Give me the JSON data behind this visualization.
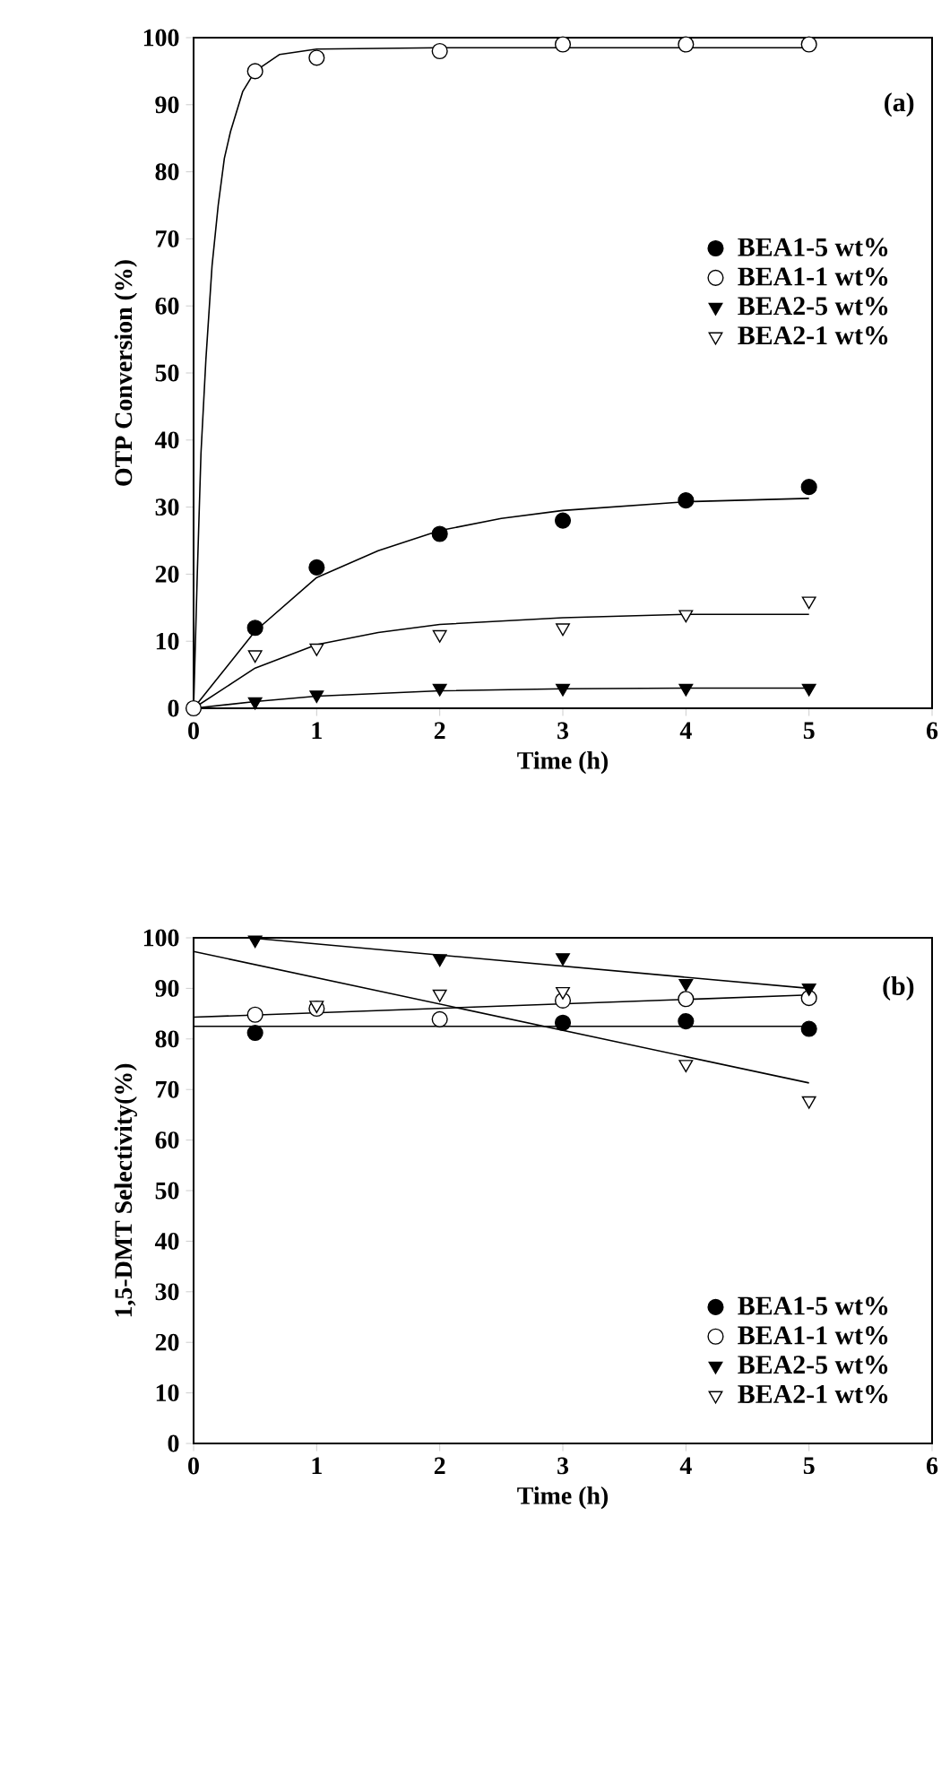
{
  "chart_data": [
    {
      "type": "scatter",
      "xlabel": "Time (h)",
      "ylabel": "OTP Conversion (%)",
      "annotations": [
        "(a)"
      ],
      "xlim": [
        0,
        6
      ],
      "ylim": [
        0,
        100
      ],
      "xticks": [
        0,
        1,
        2,
        3,
        4,
        5,
        6
      ],
      "yticks": [
        0,
        10,
        20,
        30,
        40,
        50,
        60,
        70,
        80,
        90,
        100
      ],
      "legend": "right",
      "x": [
        0,
        0.5,
        1,
        2,
        3,
        4,
        5
      ],
      "series": [
        {
          "name": "BEA1-5 wt%",
          "color": "#000000",
          "marker": "circle",
          "values": [
            null,
            12,
            21,
            26,
            28,
            31,
            33
          ]
        },
        {
          "name": "BEA1-1 wt%",
          "color": "#ffffff",
          "marker": "circle",
          "values": [
            0,
            95,
            97,
            98,
            99,
            99,
            99
          ]
        },
        {
          "name": "BEA2-5 wt%",
          "color": "#000000",
          "marker": "triangle",
          "values": [
            null,
            1,
            2,
            3,
            3,
            3,
            3
          ]
        },
        {
          "name": "BEA2-1 wt%",
          "color": "#ffffff",
          "marker": "triangle",
          "values": [
            null,
            8,
            9,
            11,
            12,
            14,
            16
          ]
        },
        {
          "type": "line",
          "color": "#000000",
          "x": [
            0,
            0.5,
            1,
            1.5,
            2,
            2.5,
            3,
            4,
            5
          ],
          "values": [
            0,
            11.5,
            19.5,
            23.5,
            26.5,
            28.3,
            29.5,
            30.8,
            31.3
          ]
        },
        {
          "type": "line",
          "color": "#000000",
          "x": [
            0,
            0.03,
            0.06,
            0.1,
            0.15,
            0.2,
            0.25,
            0.3,
            0.4,
            0.5,
            0.7,
            1,
            2,
            5
          ],
          "values": [
            0,
            20,
            38,
            52,
            66,
            75,
            82,
            86,
            92,
            95,
            97.5,
            98.3,
            98.5,
            98.5
          ]
        },
        {
          "type": "line",
          "color": "#000000",
          "x": [
            0,
            0.5,
            1,
            2,
            3,
            4,
            5
          ],
          "values": [
            0,
            1,
            1.8,
            2.6,
            2.9,
            3,
            3
          ]
        },
        {
          "type": "line",
          "color": "#000000",
          "x": [
            0,
            0.5,
            1,
            1.5,
            2,
            3,
            4,
            5
          ],
          "values": [
            0,
            6,
            9.5,
            11.3,
            12.5,
            13.5,
            14,
            14
          ]
        }
      ]
    },
    {
      "type": "scatter",
      "xlabel": "Time (h)",
      "ylabel": "1,5-DMT Selectivity(%)",
      "annotations": [
        "(b)"
      ],
      "xlim": [
        0,
        6
      ],
      "ylim": [
        0,
        100
      ],
      "xticks": [
        0,
        1,
        2,
        3,
        4,
        5,
        6
      ],
      "yticks": [
        0,
        10,
        20,
        30,
        40,
        50,
        60,
        70,
        80,
        90,
        100
      ],
      "legend": "bottom right",
      "x": [
        0.5,
        1,
        2,
        3,
        4,
        5
      ],
      "series": [
        {
          "name": "BEA1-5 wt%",
          "color": "#000000",
          "marker": "circle",
          "values": [
            81.2,
            null,
            null,
            83.2,
            83.5,
            82
          ]
        },
        {
          "name": "BEA1-1 wt%",
          "color": "#ffffff",
          "marker": "circle",
          "values": [
            84.8,
            86,
            83.9,
            87.6,
            87.9,
            88.1
          ]
        },
        {
          "name": "BEA2-5 wt%",
          "color": "#000000",
          "marker": "triangle",
          "values": [
            99.6,
            null,
            95.9,
            96.1,
            91,
            90.1
          ]
        },
        {
          "name": "BEA2-1 wt%",
          "color": "#ffffff",
          "marker": "triangle",
          "values": [
            null,
            86.7,
            88.9,
            89.4,
            75,
            67.8
          ]
        },
        {
          "type": "line",
          "color": "#000000",
          "x": [
            0,
            5
          ],
          "values": [
            82.5,
            82.5
          ]
        },
        {
          "type": "line",
          "color": "#000000",
          "x": [
            0,
            5
          ],
          "values": [
            84.3,
            88.7
          ]
        },
        {
          "type": "line",
          "color": "#000000",
          "x": [
            0.45,
            5
          ],
          "values": [
            100,
            90
          ]
        },
        {
          "type": "line",
          "color": "#000000",
          "x": [
            0,
            5
          ],
          "values": [
            97.3,
            71.3
          ]
        }
      ]
    }
  ]
}
